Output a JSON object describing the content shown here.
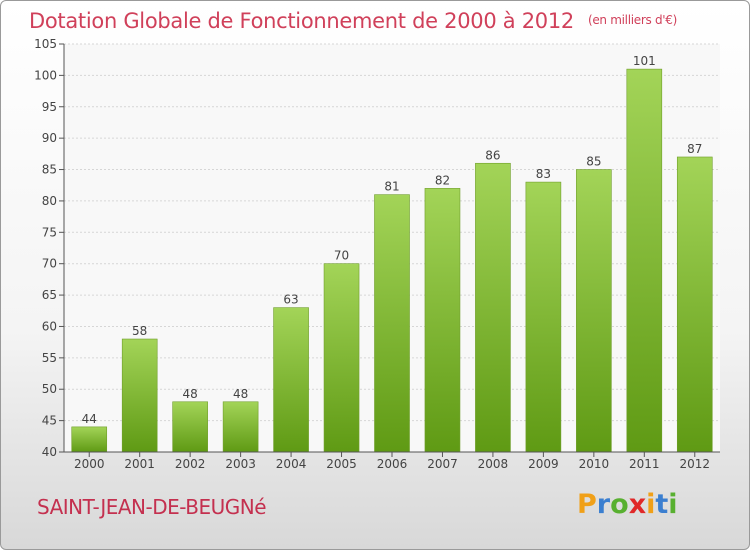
{
  "title": "Dotation Globale de Fonctionnement de 2000 à 2012",
  "unit": "(en milliers d'€)",
  "commune": "SAINT-JEAN-DE-BEUGNé",
  "logo": {
    "letters": [
      "P",
      "r",
      "o",
      "x",
      "i",
      "t",
      "i"
    ],
    "colors": [
      "#f0a018",
      "#3b7fd0",
      "#58b030",
      "#e02828",
      "#f0a018",
      "#3b7fd0",
      "#58b030"
    ]
  },
  "chart_data": {
    "type": "bar",
    "title": "Dotation Globale de Fonctionnement de 2000 à 2012",
    "subtitle": "(en milliers d'€)",
    "categories": [
      "2000",
      "2001",
      "2002",
      "2003",
      "2004",
      "2005",
      "2006",
      "2007",
      "2008",
      "2009",
      "2010",
      "2011",
      "2012"
    ],
    "values": [
      44,
      58,
      48,
      48,
      63,
      70,
      81,
      82,
      86,
      83,
      85,
      101,
      87
    ],
    "ylim": [
      40,
      105
    ],
    "yticks": [
      40,
      45,
      50,
      55,
      60,
      65,
      70,
      75,
      80,
      85,
      90,
      95,
      100,
      105
    ],
    "grid": true,
    "bar_color_top": "#a3d458",
    "bar_color_bottom": "#5f9a14"
  }
}
